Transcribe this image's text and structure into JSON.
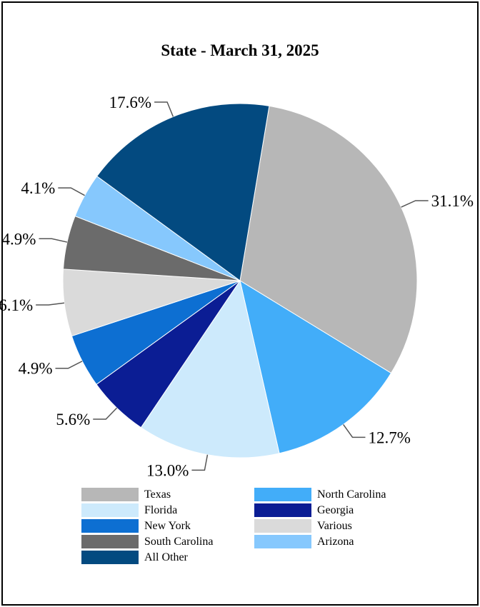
{
  "chart_data": {
    "type": "pie",
    "title": "State - March 31, 2025",
    "slices": [
      {
        "name": "Texas",
        "value": 31.1,
        "label": "31.1%",
        "color": "#b7b7b7"
      },
      {
        "name": "North Carolina",
        "value": 12.7,
        "label": "12.7%",
        "color": "#42adf9"
      },
      {
        "name": "Florida",
        "value": 13.0,
        "label": "13.0%",
        "color": "#cdeafc"
      },
      {
        "name": "Georgia",
        "value": 5.6,
        "label": "5.6%",
        "color": "#0b1d94"
      },
      {
        "name": "New York",
        "value": 4.9,
        "label": "4.9%",
        "color": "#0d6fd2"
      },
      {
        "name": "Various",
        "value": 6.1,
        "label": "6.1%",
        "color": "#dadada"
      },
      {
        "name": "South Carolina",
        "value": 4.9,
        "label": "4.9%",
        "color": "#6b6b6b"
      },
      {
        "name": "Arizona",
        "value": 4.1,
        "label": "4.1%",
        "color": "#86c8fd"
      },
      {
        "name": "All Other",
        "value": 17.6,
        "label": "17.6%",
        "color": "#034a80"
      }
    ],
    "legend": {
      "placement": "bottom",
      "columns": [
        [
          "Texas",
          "Florida",
          "New York",
          "South Carolina",
          "All Other"
        ],
        [
          "North Carolina",
          "Georgia",
          "Various",
          "Arizona"
        ]
      ]
    }
  }
}
